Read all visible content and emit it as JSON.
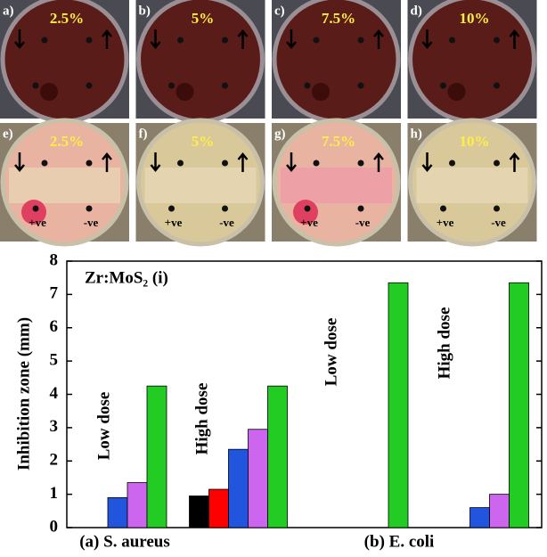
{
  "panels": [
    {
      "label": "a)",
      "concentration": "2.5%"
    },
    {
      "label": "b)",
      "concentration": "5%"
    },
    {
      "label": "c)",
      "concentration": "7.5%"
    },
    {
      "label": "d)",
      "concentration": "10%"
    },
    {
      "label": "e)",
      "concentration": "2.5%",
      "positive": "+ve",
      "negative": "-ve"
    },
    {
      "label": "f)",
      "concentration": "5%",
      "positive": "+ve",
      "negative": "-ve"
    },
    {
      "label": "g)",
      "concentration": "7.5%",
      "positive": "+ve",
      "negative": "-ve"
    },
    {
      "label": "h)",
      "concentration": "10%",
      "positive": "+ve",
      "negative": "-ve"
    }
  ],
  "chart_data": {
    "type": "bar",
    "annotation": "Zr:MoS₂  (i)",
    "y_label": "Inhibition zone (mm)",
    "categories": [
      "Low dose",
      "High dose",
      "Low dose",
      "High dose"
    ],
    "groups": [
      "(a) S. aureus",
      "(b) E. coli"
    ],
    "series": [
      {
        "color": "#000000",
        "values": [
          0,
          0.95,
          0,
          0
        ]
      },
      {
        "color": "#ff0000",
        "values": [
          0,
          1.15,
          0,
          0
        ]
      },
      {
        "color": "#2255dd",
        "values": [
          0.9,
          2.35,
          0,
          0.6
        ]
      },
      {
        "color": "#cc66ee",
        "values": [
          1.35,
          2.95,
          0,
          1.0
        ]
      },
      {
        "color": "#22cc22",
        "values": [
          4.25,
          4.25,
          7.35,
          7.35
        ]
      }
    ],
    "ylim": [
      0,
      8
    ],
    "yticks": [
      0,
      1,
      2,
      3,
      4,
      5,
      6,
      7,
      8
    ]
  }
}
